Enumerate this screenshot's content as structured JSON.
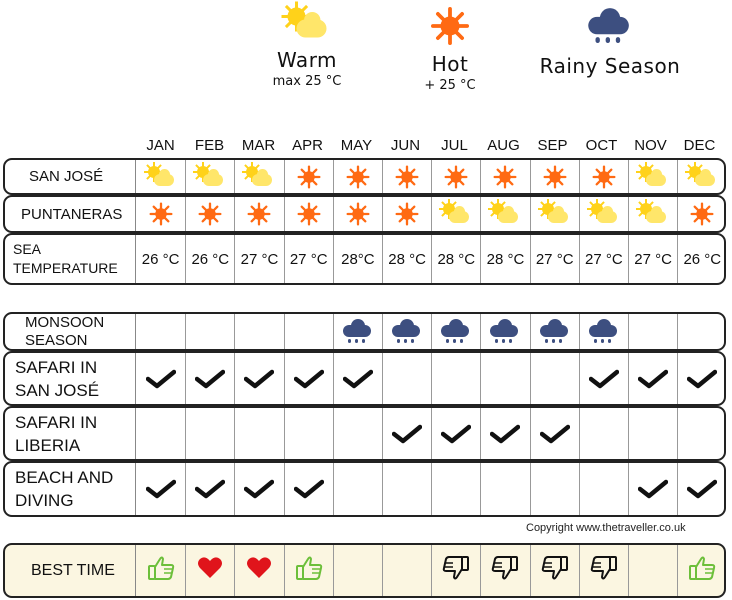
{
  "legend": {
    "warm": {
      "title": "Warm",
      "sub": "max 25 °C",
      "icon": "warm-icon"
    },
    "hot": {
      "title": "Hot",
      "sub": "+ 25 °C",
      "icon": "sun-icon"
    },
    "rainy": {
      "title": "Rainy Season",
      "icon": "rain-cloud-icon"
    }
  },
  "months": [
    "JAN",
    "FEB",
    "MAR",
    "APR",
    "MAY",
    "JUN",
    "JUL",
    "AUG",
    "SEP",
    "OCT",
    "NOV",
    "DEC"
  ],
  "weather": {
    "san_jose": {
      "label": "SAN JOSÉ",
      "icons": [
        "warm",
        "warm",
        "warm",
        "hot",
        "hot",
        "hot",
        "hot",
        "hot",
        "hot",
        "hot",
        "warm",
        "warm"
      ]
    },
    "puntarenas": {
      "label": "PUNTANERAS",
      "icons": [
        "hot",
        "hot",
        "hot",
        "hot",
        "hot",
        "hot",
        "warm",
        "warm",
        "warm",
        "warm",
        "warm",
        "hot"
      ]
    },
    "sea": {
      "label": "SEA\nTEMPERATURE",
      "values": [
        "26 °C",
        "26 °C",
        "27 °C",
        "27 °C",
        "28°C",
        "28 °C",
        "28 °C",
        "28 °C",
        "27 °C",
        "27 °C",
        "27 °C",
        "26 °C"
      ]
    }
  },
  "activities": {
    "monsoon": {
      "label": "MONSOON\nSEASON",
      "marks": [
        0,
        0,
        0,
        0,
        1,
        1,
        1,
        1,
        1,
        1,
        0,
        0
      ]
    },
    "safari_sj": {
      "label": "SAFARI IN\nSAN JOSÉ",
      "marks": [
        1,
        1,
        1,
        1,
        1,
        0,
        0,
        0,
        0,
        1,
        1,
        1
      ]
    },
    "safari_lib": {
      "label": "SAFARI IN\nLIBERIA",
      "marks": [
        0,
        0,
        0,
        0,
        0,
        1,
        1,
        1,
        1,
        0,
        0,
        0
      ]
    },
    "beach": {
      "label": "BEACH AND\nDIVING",
      "marks": [
        1,
        1,
        1,
        1,
        0,
        0,
        0,
        0,
        0,
        0,
        1,
        1
      ]
    }
  },
  "copyright": "Copyright www.thetraveller.co.uk",
  "best_time": {
    "label": "BEST TIME",
    "marks": [
      "thumbs-up",
      "heart",
      "heart",
      "thumbs-up",
      "",
      "",
      "thumbs-down",
      "thumbs-down",
      "thumbs-down",
      "thumbs-down",
      "",
      "thumbs-up"
    ]
  },
  "colors": {
    "hot": "#ff6a13",
    "warm": "#ffd21a",
    "rain": "#3d4f80",
    "thumbs_up": "#6cbf3a",
    "heart": "#e0141b",
    "best_bg": "#fbf6e1"
  }
}
